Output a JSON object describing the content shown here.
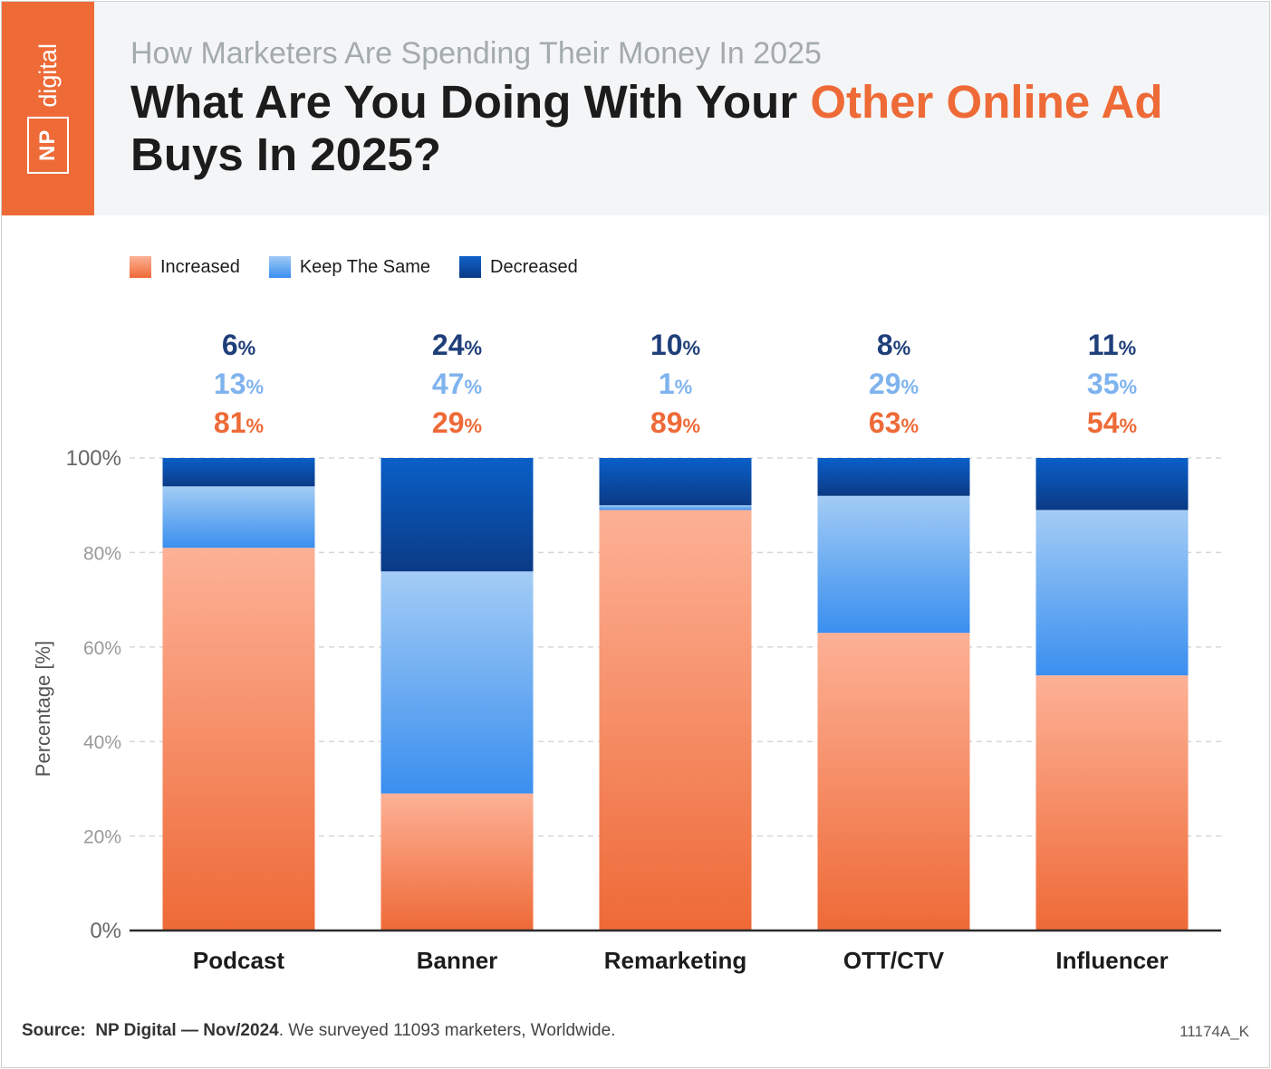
{
  "brand": {
    "box_text": "NP",
    "word": "digital"
  },
  "header": {
    "subtitle": "How Marketers Are Spending Their Money In 2025",
    "title_part1": "What Are You Doing With Your ",
    "title_highlight": "Other Online Ad",
    "title_part2": " Buys In 2025?"
  },
  "colors": {
    "accent": "#ee6a37",
    "increased": "#f27a4c",
    "keep_same": "#6aa9f0",
    "decreased": "#0c4ea6",
    "label_decreased": "#1f3f7a",
    "label_same": "#7fb3ee",
    "label_increased": "#ee6a37"
  },
  "chart_data": {
    "type": "bar",
    "stacked": true,
    "categories": [
      "Podcast",
      "Banner",
      "Remarketing",
      "OTT/CTV",
      "Influencer"
    ],
    "series": [
      {
        "name": "Increased",
        "values": [
          81,
          29,
          89,
          63,
          54
        ]
      },
      {
        "name": "Keep The Same",
        "values": [
          13,
          47,
          1,
          29,
          35
        ]
      },
      {
        "name": "Decreased",
        "values": [
          6,
          24,
          10,
          8,
          11
        ]
      }
    ],
    "ylabel": "Percentage [%]",
    "ylim": [
      0,
      100
    ],
    "yticks": [
      0,
      20,
      40,
      60,
      80,
      100
    ],
    "ytick_labels": [
      "0%",
      "20%",
      "40%",
      "60%",
      "80%",
      "100%"
    ],
    "value_suffix": "%",
    "grid": true,
    "legend_position": "top-left"
  },
  "footer": {
    "source_label": "Source:",
    "source_main": "NP Digital — Nov/2024",
    "source_rest": ". We surveyed 11093 marketers, Worldwide.",
    "code": "11174A_K"
  }
}
